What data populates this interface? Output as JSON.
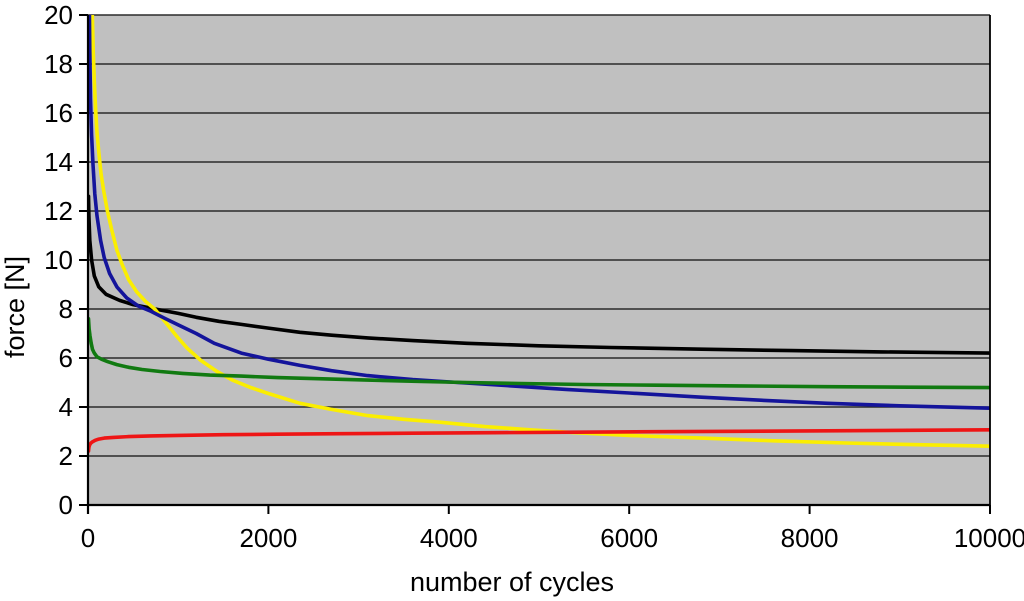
{
  "chart_data": {
    "type": "line",
    "title": "",
    "xlabel": "number of cycles",
    "ylabel": "force [N]",
    "xlim": [
      0,
      10000
    ],
    "ylim": [
      0,
      20
    ],
    "x_ticks": [
      0,
      2000,
      4000,
      6000,
      8000,
      10000
    ],
    "y_ticks": [
      0,
      2,
      4,
      6,
      8,
      10,
      12,
      14,
      16,
      18,
      20
    ],
    "grid": "horizontal-only",
    "legend": "none",
    "colors": {
      "plot_background": "#c0c0c0",
      "gridline": "#2b2b2b",
      "axis": "#000000",
      "text": "#000000"
    },
    "series": [
      {
        "name": "black",
        "color": "#000000",
        "points": [
          [
            5,
            12.6
          ],
          [
            10,
            11.8
          ],
          [
            20,
            10.8
          ],
          [
            40,
            10.0
          ],
          [
            70,
            9.35
          ],
          [
            120,
            8.9
          ],
          [
            200,
            8.6
          ],
          [
            350,
            8.35
          ],
          [
            500,
            8.18
          ],
          [
            650,
            8.07
          ],
          [
            800,
            7.96
          ],
          [
            1000,
            7.82
          ],
          [
            1200,
            7.66
          ],
          [
            1450,
            7.5
          ],
          [
            1700,
            7.37
          ],
          [
            2000,
            7.22
          ],
          [
            2350,
            7.05
          ],
          [
            2700,
            6.93
          ],
          [
            3100,
            6.82
          ],
          [
            3600,
            6.71
          ],
          [
            4200,
            6.6
          ],
          [
            5000,
            6.5
          ],
          [
            5800,
            6.43
          ],
          [
            6800,
            6.36
          ],
          [
            7800,
            6.3
          ],
          [
            8800,
            6.25
          ],
          [
            10000,
            6.2
          ]
        ]
      },
      {
        "name": "yellow",
        "color": "#fbee00",
        "points": [
          [
            40,
            20.6
          ],
          [
            48,
            20.0
          ],
          [
            58,
            18.6
          ],
          [
            70,
            17.3
          ],
          [
            85,
            16.1
          ],
          [
            100,
            15.2
          ],
          [
            120,
            14.4
          ],
          [
            145,
            13.5
          ],
          [
            175,
            12.8
          ],
          [
            215,
            12.0
          ],
          [
            265,
            11.2
          ],
          [
            320,
            10.4
          ],
          [
            380,
            9.8
          ],
          [
            450,
            9.2
          ],
          [
            540,
            8.7
          ],
          [
            640,
            8.3
          ],
          [
            740,
            8.0
          ],
          [
            850,
            7.5
          ],
          [
            980,
            6.9
          ],
          [
            1100,
            6.4
          ],
          [
            1250,
            5.9
          ],
          [
            1430,
            5.45
          ],
          [
            1600,
            5.1
          ],
          [
            1800,
            4.8
          ],
          [
            2000,
            4.55
          ],
          [
            2350,
            4.15
          ],
          [
            2700,
            3.9
          ],
          [
            3100,
            3.65
          ],
          [
            3500,
            3.5
          ],
          [
            3900,
            3.38
          ],
          [
            4400,
            3.2
          ],
          [
            4900,
            3.07
          ],
          [
            5400,
            2.95
          ],
          [
            6000,
            2.84
          ],
          [
            6800,
            2.73
          ],
          [
            7600,
            2.62
          ],
          [
            8400,
            2.53
          ],
          [
            9200,
            2.46
          ],
          [
            10000,
            2.4
          ]
        ]
      },
      {
        "name": "blue",
        "color": "#14149b",
        "points": [
          [
            14,
            20.6
          ],
          [
            20,
            18.5
          ],
          [
            28,
            16.6
          ],
          [
            40,
            15.1
          ],
          [
            55,
            13.9
          ],
          [
            75,
            12.7
          ],
          [
            100,
            11.8
          ],
          [
            140,
            10.8
          ],
          [
            180,
            10.1
          ],
          [
            240,
            9.45
          ],
          [
            320,
            8.9
          ],
          [
            430,
            8.45
          ],
          [
            560,
            8.12
          ],
          [
            700,
            7.9
          ],
          [
            850,
            7.62
          ],
          [
            1000,
            7.35
          ],
          [
            1200,
            7.0
          ],
          [
            1400,
            6.6
          ],
          [
            1700,
            6.2
          ],
          [
            2000,
            5.95
          ],
          [
            2350,
            5.7
          ],
          [
            2700,
            5.48
          ],
          [
            3100,
            5.28
          ],
          [
            3600,
            5.12
          ],
          [
            4100,
            5.0
          ],
          [
            4700,
            4.86
          ],
          [
            5300,
            4.72
          ],
          [
            6000,
            4.57
          ],
          [
            6800,
            4.4
          ],
          [
            7500,
            4.27
          ],
          [
            8200,
            4.15
          ],
          [
            9000,
            4.05
          ],
          [
            10000,
            3.95
          ]
        ]
      },
      {
        "name": "green",
        "color": "#117a11",
        "points": [
          [
            5,
            7.6
          ],
          [
            12,
            7.2
          ],
          [
            22,
            6.9
          ],
          [
            35,
            6.6
          ],
          [
            50,
            6.35
          ],
          [
            70,
            6.2
          ],
          [
            100,
            6.05
          ],
          [
            150,
            5.95
          ],
          [
            220,
            5.85
          ],
          [
            320,
            5.73
          ],
          [
            450,
            5.62
          ],
          [
            600,
            5.53
          ],
          [
            800,
            5.45
          ],
          [
            1050,
            5.37
          ],
          [
            1350,
            5.3
          ],
          [
            1700,
            5.26
          ],
          [
            2100,
            5.2
          ],
          [
            2600,
            5.15
          ],
          [
            3100,
            5.1
          ],
          [
            3700,
            5.04
          ],
          [
            4200,
            5.0
          ],
          [
            4800,
            4.96
          ],
          [
            5500,
            4.92
          ],
          [
            6300,
            4.89
          ],
          [
            7200,
            4.86
          ],
          [
            8200,
            4.83
          ],
          [
            9100,
            4.81
          ],
          [
            10000,
            4.79
          ]
        ]
      },
      {
        "name": "red",
        "color": "#ee1515",
        "points": [
          [
            5,
            2.2
          ],
          [
            10,
            2.35
          ],
          [
            18,
            2.45
          ],
          [
            30,
            2.52
          ],
          [
            50,
            2.58
          ],
          [
            80,
            2.64
          ],
          [
            120,
            2.69
          ],
          [
            180,
            2.73
          ],
          [
            280,
            2.76
          ],
          [
            450,
            2.79
          ],
          [
            700,
            2.82
          ],
          [
            1000,
            2.84
          ],
          [
            1500,
            2.87
          ],
          [
            2100,
            2.89
          ],
          [
            2800,
            2.91
          ],
          [
            3600,
            2.93
          ],
          [
            4500,
            2.95
          ],
          [
            5400,
            2.97
          ],
          [
            6300,
            2.99
          ],
          [
            7200,
            3.01
          ],
          [
            8200,
            3.03
          ],
          [
            9100,
            3.05
          ],
          [
            10000,
            3.07
          ]
        ]
      }
    ]
  }
}
